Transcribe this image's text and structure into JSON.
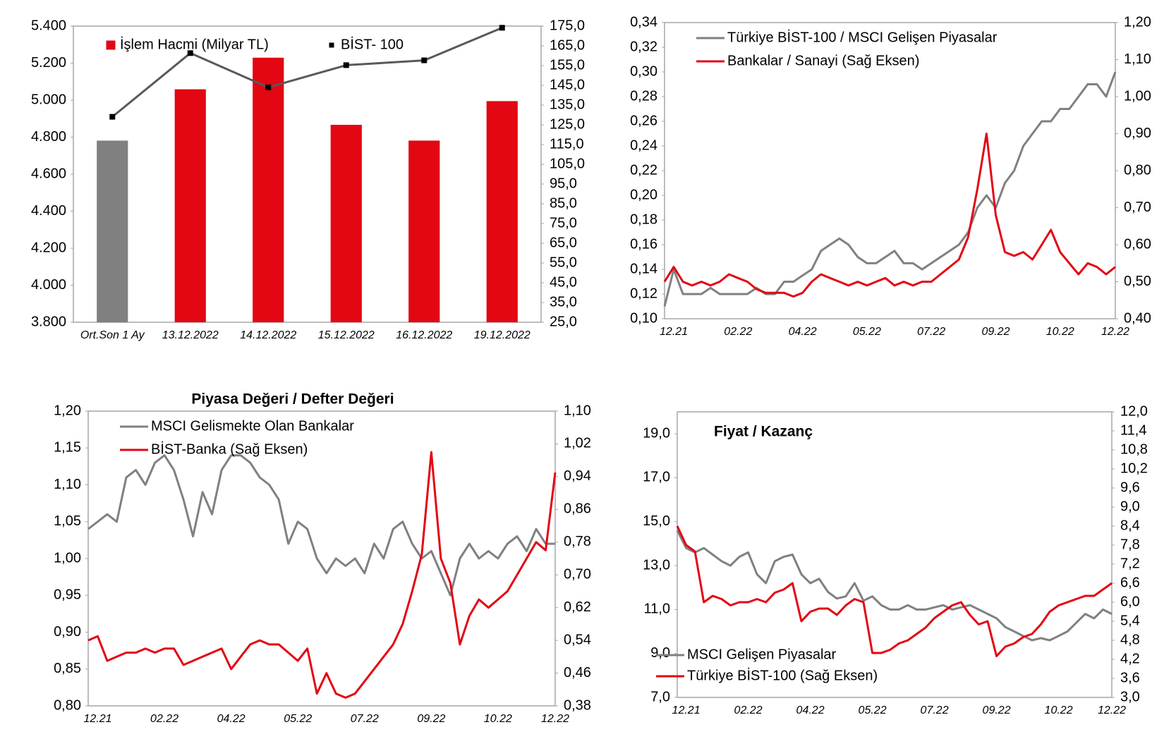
{
  "chart_data": [
    {
      "type": "bar",
      "legend": "top",
      "categories": [
        "Ort.Son 1 Ay",
        "13.12.2022",
        "14.12.2022",
        "15.12.2022",
        "16.12.2022",
        "19.12.2022"
      ],
      "series": [
        {
          "name": "İşlem Hacmi (Milyar TL)",
          "color": "#e30613",
          "colors": [
            "#808080",
            "#e30613",
            "#e30613",
            "#e30613",
            "#e30613",
            "#e30613"
          ],
          "axis": "y2",
          "values": [
            117,
            143,
            159,
            125,
            117,
            137
          ]
        },
        {
          "name": "BİST- 100",
          "type": "line",
          "color": "#595959",
          "marker_color": "#000000",
          "values": [
            4910,
            5254,
            5069,
            5189,
            5215,
            5391
          ]
        }
      ],
      "ylim": [
        3800,
        5400
      ],
      "yticks": [
        {
          "value": 3800,
          "label": "3.800"
        },
        {
          "value": 4000,
          "label": "4.000"
        },
        {
          "value": 4200,
          "label": "4.200"
        },
        {
          "value": 4400,
          "label": "4.400"
        },
        {
          "value": 4600,
          "label": "4.600"
        },
        {
          "value": 4800,
          "label": "4.800"
        },
        {
          "value": 5000,
          "label": "5.000"
        },
        {
          "value": 5200,
          "label": "5.200"
        },
        {
          "value": 5400,
          "label": "5.400"
        }
      ],
      "y2lim": [
        25,
        175
      ],
      "y2ticks": [
        {
          "value": 25,
          "label": "25,0"
        },
        {
          "value": 35,
          "label": "35,0"
        },
        {
          "value": 45,
          "label": "45,0"
        },
        {
          "value": 55,
          "label": "55,0"
        },
        {
          "value": 65,
          "label": "65,0"
        },
        {
          "value": 75,
          "label": "75,0"
        },
        {
          "value": 85,
          "label": "85,0"
        },
        {
          "value": 95,
          "label": "95,0"
        },
        {
          "value": 105,
          "label": "105,0"
        },
        {
          "value": 115,
          "label": "115,0"
        },
        {
          "value": 125,
          "label": "125,0"
        },
        {
          "value": 135,
          "label": "135,0"
        },
        {
          "value": 145,
          "label": "145,0"
        },
        {
          "value": 155,
          "label": "155,0"
        },
        {
          "value": 165,
          "label": "165,0"
        },
        {
          "value": 175,
          "label": "175,0"
        }
      ]
    },
    {
      "type": "line",
      "legend": "upper-left",
      "categories": [
        null,
        "12.21",
        null,
        null,
        null,
        null,
        null,
        null,
        "02.22",
        null,
        null,
        null,
        null,
        null,
        null,
        "04.22",
        null,
        null,
        null,
        null,
        null,
        null,
        "05.22",
        null,
        null,
        null,
        null,
        null,
        null,
        "07.22",
        null,
        null,
        null,
        null,
        null,
        null,
        "09.22",
        null,
        null,
        null,
        null,
        null,
        null,
        "10.22",
        null,
        null,
        null,
        null,
        null,
        "12.22"
      ],
      "series": [
        {
          "name": "Türkiye BİST-100 / MSCI Gelişen Piyasalar",
          "color": "#808080",
          "values": [
            0.11,
            0.14,
            0.12,
            0.12,
            0.12,
            0.125,
            0.12,
            0.12,
            0.12,
            0.12,
            0.125,
            0.12,
            0.12,
            0.13,
            0.13,
            0.135,
            0.14,
            0.155,
            0.16,
            0.165,
            0.16,
            0.15,
            0.145,
            0.145,
            0.15,
            0.155,
            0.145,
            0.145,
            0.14,
            0.145,
            0.15,
            0.155,
            0.16,
            0.17,
            0.19,
            0.2,
            0.19,
            0.21,
            0.22,
            0.24,
            0.25,
            0.26,
            0.26,
            0.27,
            0.27,
            0.28,
            0.29,
            0.29,
            0.28,
            0.3
          ]
        },
        {
          "name": "Bankalar / Sanayi (Sağ Eksen)",
          "color": "#e30613",
          "axis": "y2",
          "values": [
            0.5,
            0.54,
            0.5,
            0.49,
            0.5,
            0.49,
            0.5,
            0.52,
            0.51,
            0.5,
            0.48,
            0.47,
            0.47,
            0.47,
            0.46,
            0.47,
            0.5,
            0.52,
            0.51,
            0.5,
            0.49,
            0.5,
            0.49,
            0.5,
            0.51,
            0.49,
            0.5,
            0.49,
            0.5,
            0.5,
            0.52,
            0.54,
            0.56,
            0.62,
            0.75,
            0.9,
            0.68,
            0.58,
            0.57,
            0.58,
            0.56,
            0.6,
            0.64,
            0.58,
            0.55,
            0.52,
            0.55,
            0.54,
            0.52,
            0.54
          ]
        }
      ],
      "ylim": [
        0.1,
        0.34
      ],
      "yticks": [
        {
          "value": 0.1,
          "label": "0,10"
        },
        {
          "value": 0.12,
          "label": "0,12"
        },
        {
          "value": 0.14,
          "label": "0,14"
        },
        {
          "value": 0.16,
          "label": "0,16"
        },
        {
          "value": 0.18,
          "label": "0,18"
        },
        {
          "value": 0.2,
          "label": "0,20"
        },
        {
          "value": 0.22,
          "label": "0,22"
        },
        {
          "value": 0.24,
          "label": "0,24"
        },
        {
          "value": 0.26,
          "label": "0,26"
        },
        {
          "value": 0.28,
          "label": "0,28"
        },
        {
          "value": 0.3,
          "label": "0,30"
        },
        {
          "value": 0.32,
          "label": "0,32"
        },
        {
          "value": 0.34,
          "label": "0,34"
        }
      ],
      "y2lim": [
        0.4,
        1.2
      ],
      "y2ticks": [
        {
          "value": 0.4,
          "label": "0,40"
        },
        {
          "value": 0.5,
          "label": "0,50"
        },
        {
          "value": 0.6,
          "label": "0,60"
        },
        {
          "value": 0.7,
          "label": "0,70"
        },
        {
          "value": 0.8,
          "label": "0,80"
        },
        {
          "value": 0.9,
          "label": "0,90"
        },
        {
          "value": 1.0,
          "label": "1,00"
        },
        {
          "value": 1.1,
          "label": "1,10"
        },
        {
          "value": 1.2,
          "label": "1,20"
        }
      ]
    },
    {
      "type": "line",
      "legend": "upper-left",
      "title": "Piyasa Değeri / Defter Değeri",
      "categories": [
        null,
        "12.21",
        null,
        null,
        null,
        null,
        null,
        null,
        "02.22",
        null,
        null,
        null,
        null,
        null,
        null,
        "04.22",
        null,
        null,
        null,
        null,
        null,
        null,
        "05.22",
        null,
        null,
        null,
        null,
        null,
        null,
        "07.22",
        null,
        null,
        null,
        null,
        null,
        null,
        "09.22",
        null,
        null,
        null,
        null,
        null,
        null,
        "10.22",
        null,
        null,
        null,
        null,
        null,
        "12.22"
      ],
      "series": [
        {
          "name": "MSCI Gelismekte Olan Bankalar",
          "color": "#808080",
          "values": [
            1.04,
            1.05,
            1.06,
            1.05,
            1.11,
            1.12,
            1.1,
            1.13,
            1.14,
            1.12,
            1.08,
            1.03,
            1.09,
            1.06,
            1.12,
            1.14,
            1.14,
            1.13,
            1.11,
            1.1,
            1.08,
            1.02,
            1.05,
            1.04,
            1.0,
            0.98,
            1.0,
            0.99,
            1.0,
            0.98,
            1.02,
            1.0,
            1.04,
            1.05,
            1.02,
            1.0,
            1.01,
            0.98,
            0.95,
            1.0,
            1.02,
            1.0,
            1.01,
            1.0,
            1.02,
            1.03,
            1.01,
            1.04,
            1.02,
            1.02
          ]
        },
        {
          "name": "BİST-Banka (Sağ Eksen)",
          "color": "#e30613",
          "axis": "y2",
          "values": [
            0.54,
            0.55,
            0.49,
            0.5,
            0.51,
            0.51,
            0.52,
            0.51,
            0.52,
            0.52,
            0.48,
            0.49,
            0.5,
            0.51,
            0.52,
            0.47,
            0.5,
            0.53,
            0.54,
            0.53,
            0.53,
            0.51,
            0.49,
            0.52,
            0.41,
            0.46,
            0.41,
            0.4,
            0.41,
            0.44,
            0.47,
            0.5,
            0.53,
            0.58,
            0.66,
            0.75,
            1.0,
            0.74,
            0.68,
            0.53,
            0.6,
            0.64,
            0.62,
            0.64,
            0.66,
            0.7,
            0.74,
            0.78,
            0.76,
            0.95
          ]
        }
      ],
      "ylim": [
        0.8,
        1.2
      ],
      "yticks": [
        {
          "value": 0.8,
          "label": "0,80"
        },
        {
          "value": 0.85,
          "label": "0,85"
        },
        {
          "value": 0.9,
          "label": "0,90"
        },
        {
          "value": 0.95,
          "label": "0,95"
        },
        {
          "value": 1.0,
          "label": "1,00"
        },
        {
          "value": 1.05,
          "label": "1,05"
        },
        {
          "value": 1.1,
          "label": "1,10"
        },
        {
          "value": 1.15,
          "label": "1,15"
        },
        {
          "value": 1.2,
          "label": "1,20"
        }
      ],
      "y2lim": [
        0.38,
        1.1
      ],
      "y2ticks": [
        {
          "value": 0.38,
          "label": "0,38"
        },
        {
          "value": 0.46,
          "label": "0,46"
        },
        {
          "value": 0.54,
          "label": "0,54"
        },
        {
          "value": 0.62,
          "label": "0,62"
        },
        {
          "value": 0.7,
          "label": "0,70"
        },
        {
          "value": 0.78,
          "label": "0,78"
        },
        {
          "value": 0.86,
          "label": "0,86"
        },
        {
          "value": 0.94,
          "label": "0,94"
        },
        {
          "value": 1.02,
          "label": "1,02"
        },
        {
          "value": 1.1,
          "label": "1,10"
        }
      ]
    },
    {
      "type": "line",
      "legend": "lower-left",
      "title": "Fiyat / Kazanç",
      "categories": [
        null,
        "12.21",
        null,
        null,
        null,
        null,
        null,
        null,
        "02.22",
        null,
        null,
        null,
        null,
        null,
        null,
        "04.22",
        null,
        null,
        null,
        null,
        null,
        null,
        "05.22",
        null,
        null,
        null,
        null,
        null,
        null,
        "07.22",
        null,
        null,
        null,
        null,
        null,
        null,
        "09.22",
        null,
        null,
        null,
        null,
        null,
        null,
        "10.22",
        null,
        null,
        null,
        null,
        null,
        "12.22"
      ],
      "series": [
        {
          "name": "MSCI Gelişen Piyasalar",
          "color": "#808080",
          "values": [
            14.6,
            13.8,
            13.6,
            13.8,
            13.5,
            13.2,
            13.0,
            13.4,
            13.6,
            12.6,
            12.2,
            13.2,
            13.4,
            13.5,
            12.6,
            12.2,
            12.4,
            11.8,
            11.5,
            11.6,
            12.2,
            11.4,
            11.6,
            11.2,
            11.0,
            11.0,
            11.2,
            11.0,
            11.0,
            11.1,
            11.2,
            11.0,
            11.1,
            11.2,
            11.0,
            10.8,
            10.6,
            10.2,
            10.0,
            9.8,
            9.6,
            9.7,
            9.6,
            9.8,
            10.0,
            10.4,
            10.8,
            10.6,
            11.0,
            10.8
          ]
        },
        {
          "name": "Türkiye BİST-100 (Sağ Eksen)",
          "color": "#e30613",
          "axis": "y2",
          "values": [
            8.4,
            7.8,
            7.6,
            6.0,
            6.2,
            6.1,
            5.9,
            6.0,
            6.0,
            6.1,
            6.0,
            6.3,
            6.4,
            6.6,
            5.4,
            5.7,
            5.8,
            5.8,
            5.6,
            5.9,
            6.1,
            6.0,
            4.4,
            4.4,
            4.5,
            4.7,
            4.8,
            5.0,
            5.2,
            5.5,
            5.7,
            5.9,
            6.0,
            5.6,
            5.3,
            5.4,
            4.3,
            4.6,
            4.7,
            4.9,
            5.0,
            5.3,
            5.7,
            5.9,
            6.0,
            6.1,
            6.2,
            6.2,
            6.4,
            6.6
          ]
        }
      ],
      "ylim": [
        7,
        20
      ],
      "yticks": [
        {
          "value": 7,
          "label": "7,0"
        },
        {
          "value": 9,
          "label": "9,0"
        },
        {
          "value": 11,
          "label": "11,0"
        },
        {
          "value": 13,
          "label": "13,0"
        },
        {
          "value": 15,
          "label": "15,0"
        },
        {
          "value": 17,
          "label": "17,0"
        },
        {
          "value": 19,
          "label": "19,0"
        }
      ],
      "y2lim": [
        3,
        12
      ],
      "y2ticks": [
        {
          "value": 3,
          "label": "3,0"
        },
        {
          "value": 3.6,
          "label": "3,6"
        },
        {
          "value": 4.2,
          "label": "4,2"
        },
        {
          "value": 4.8,
          "label": "4,8"
        },
        {
          "value": 5.4,
          "label": "5,4"
        },
        {
          "value": 6,
          "label": "6,0"
        },
        {
          "value": 6.6,
          "label": "6,6"
        },
        {
          "value": 7.2,
          "label": "7,2"
        },
        {
          "value": 7.8,
          "label": "7,8"
        },
        {
          "value": 8.4,
          "label": "8,4"
        },
        {
          "value": 9,
          "label": "9,0"
        },
        {
          "value": 9.6,
          "label": "9,6"
        },
        {
          "value": 10.2,
          "label": "10,2"
        },
        {
          "value": 10.8,
          "label": "10,8"
        },
        {
          "value": 11.4,
          "label": "11,4"
        },
        {
          "value": 12,
          "label": "12,0"
        }
      ]
    }
  ]
}
